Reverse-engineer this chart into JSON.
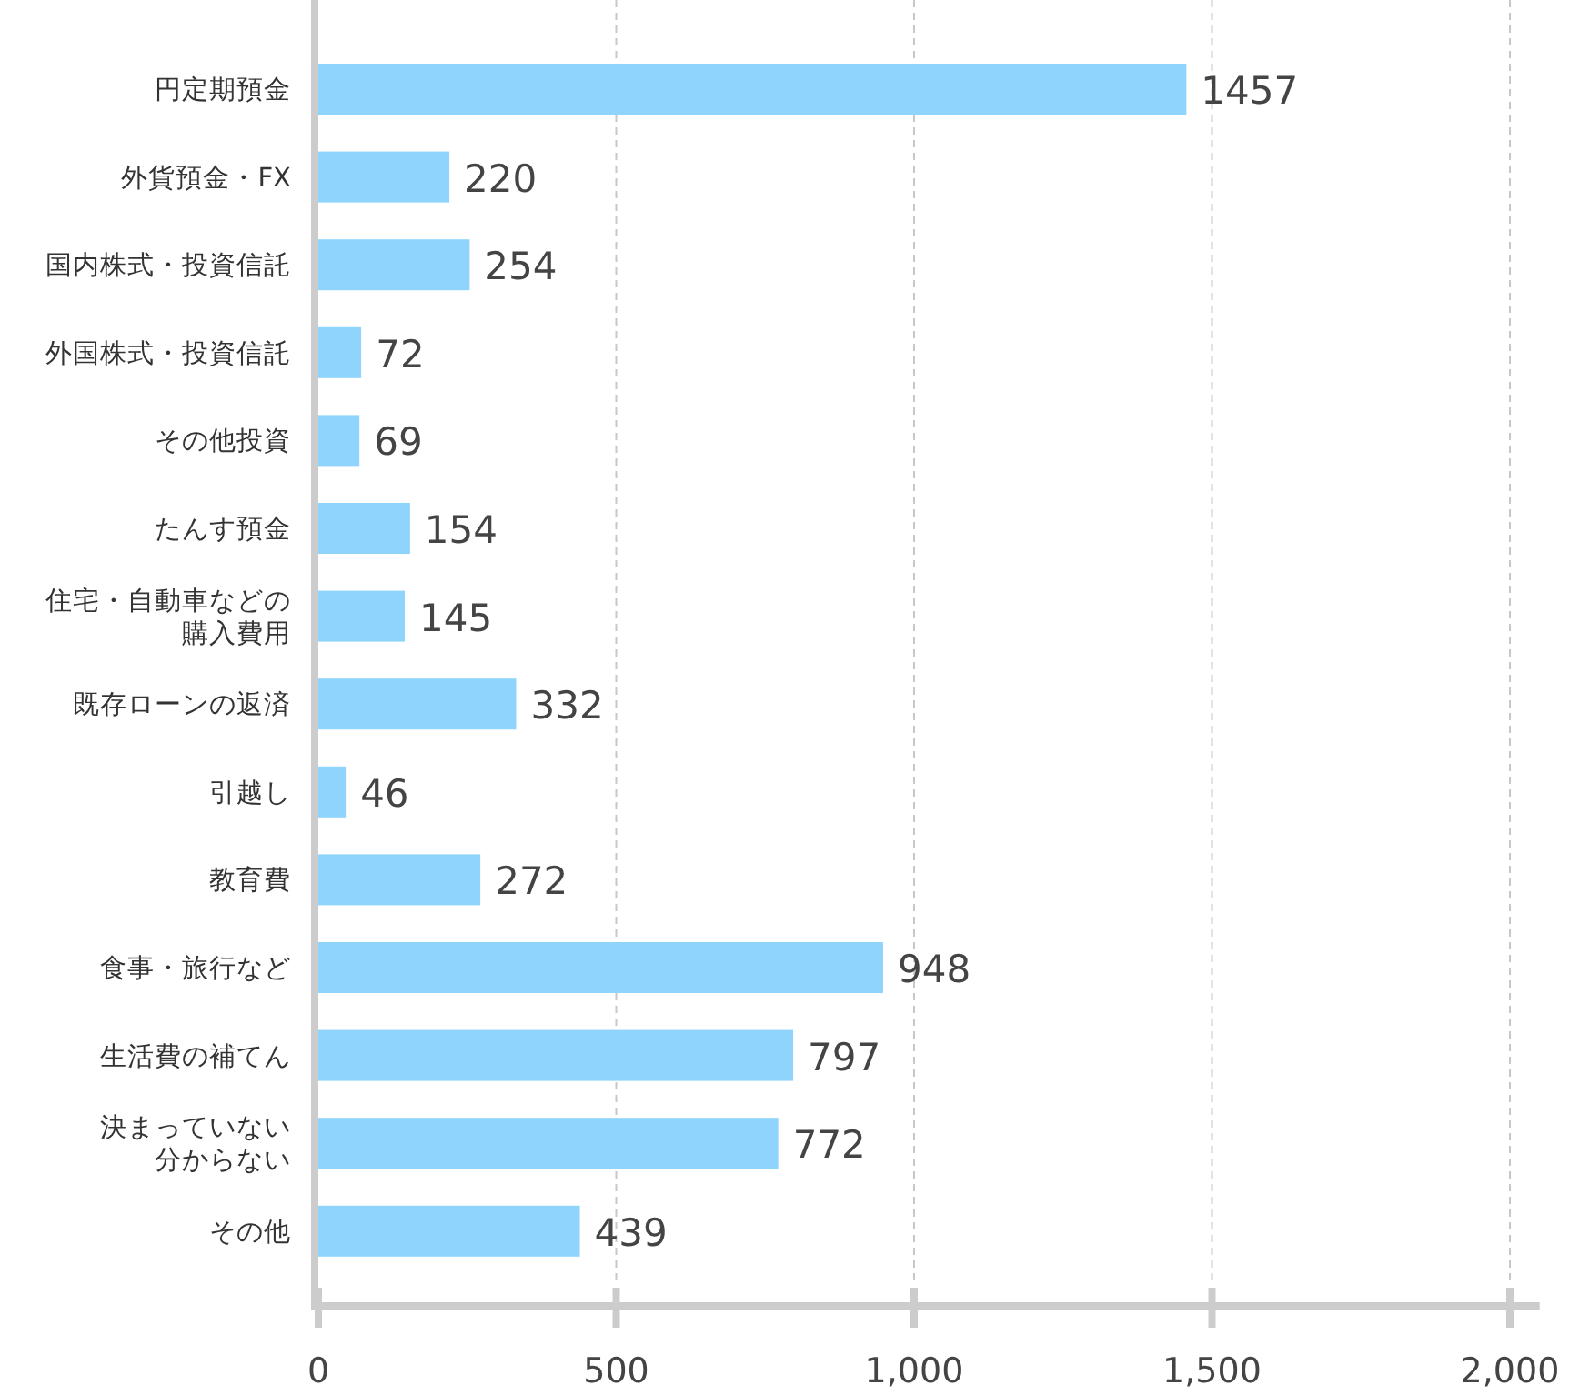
{
  "chart_data": {
    "type": "bar",
    "orientation": "horizontal",
    "categories": [
      "円定期預金",
      "外貨預金・FX",
      "国内株式・投資信託",
      "外国株式・投資信託",
      "その他投資",
      "たんす預金",
      "住宅・自動車などの購入費用",
      "既存ローンの返済",
      "引越し",
      "教育費",
      "食事・旅行など",
      "生活費の補てん",
      "決まっていない分からない",
      "その他"
    ],
    "values": [
      1457,
      220,
      254,
      72,
      69,
      154,
      145,
      332,
      46,
      272,
      948,
      797,
      772,
      439
    ],
    "color": "#8ed4fc",
    "xlim": [
      0,
      2050
    ],
    "xticks": [
      0,
      500,
      {
        "value": 1000,
        "label": "1,000"
      },
      {
        "value": 1500,
        "label": "1,500"
      },
      {
        "value": 2000,
        "label": "2,000"
      }
    ],
    "grid": "x",
    "data_labels": true
  }
}
